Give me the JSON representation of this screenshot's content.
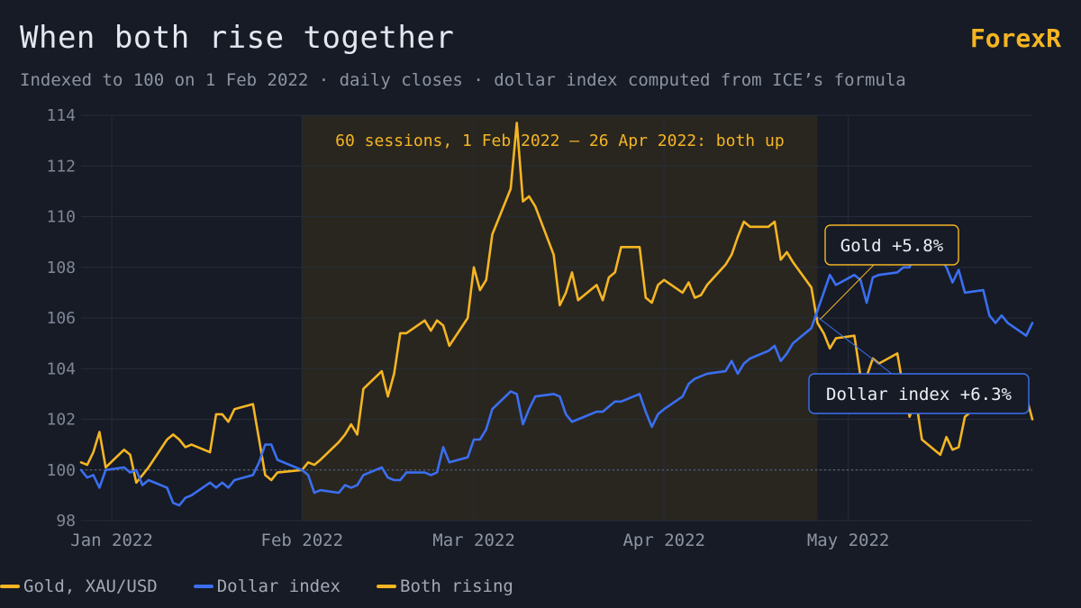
{
  "header": {
    "title": "When both rise together",
    "brand": "ForexR",
    "subtitle": "Indexed to 100 on 1 Feb 2022 · daily closes · dollar index computed from ICE’s formula"
  },
  "legend": [
    {
      "label": "Gold, XAU/USD",
      "color": "#f5b523"
    },
    {
      "label": "Dollar index",
      "color": "#3b6ff0"
    },
    {
      "label": "Both rising",
      "color": "#f5b523"
    }
  ],
  "chart_data": {
    "type": "line",
    "title": "When both rise together",
    "xlabel": "",
    "ylabel": "",
    "ylim": [
      98,
      114
    ],
    "yticks": [
      98,
      100,
      102,
      104,
      106,
      108,
      110,
      112,
      114
    ],
    "xticks": [
      {
        "label": "Jan 2022",
        "date": "2022-01-01"
      },
      {
        "label": "Feb 2022",
        "date": "2022-02-01"
      },
      {
        "label": "Mar 2022",
        "date": "2022-03-01"
      },
      {
        "label": "Apr 2022",
        "date": "2022-04-01"
      },
      {
        "label": "May 2022",
        "date": "2022-05-01"
      }
    ],
    "xrange": [
      "2021-12-27",
      "2022-05-31"
    ],
    "reference_line": 100,
    "grid": true,
    "shaded_region": {
      "start": "2022-02-01",
      "end": "2022-04-26",
      "label": "60 sessions, 1 Feb 2022 – 26 Apr 2022: both up"
    },
    "annotations": [
      {
        "text": "Gold +5.8%",
        "series": "Gold, XAU/USD",
        "date": "2022-04-26",
        "value": 105.8
      },
      {
        "text": "Dollar index +6.3%",
        "series": "Dollar index",
        "date": "2022-04-26",
        "value": 106.3
      }
    ],
    "series": [
      {
        "name": "Gold, XAU/USD",
        "color": "#f5b523",
        "points": [
          [
            "2021-12-27",
            100.3
          ],
          [
            "2021-12-28",
            100.2
          ],
          [
            "2021-12-29",
            100.7
          ],
          [
            "2021-12-30",
            101.5
          ],
          [
            "2021-12-31",
            100.1
          ],
          [
            "2022-01-03",
            100.8
          ],
          [
            "2022-01-04",
            100.6
          ],
          [
            "2022-01-05",
            99.5
          ],
          [
            "2022-01-06",
            99.8
          ],
          [
            "2022-01-07",
            100.1
          ],
          [
            "2022-01-10",
            101.2
          ],
          [
            "2022-01-11",
            101.4
          ],
          [
            "2022-01-12",
            101.2
          ],
          [
            "2022-01-13",
            100.9
          ],
          [
            "2022-01-14",
            101.0
          ],
          [
            "2022-01-17",
            100.7
          ],
          [
            "2022-01-18",
            102.2
          ],
          [
            "2022-01-19",
            102.2
          ],
          [
            "2022-01-20",
            101.9
          ],
          [
            "2022-01-21",
            102.4
          ],
          [
            "2022-01-24",
            102.6
          ],
          [
            "2022-01-25",
            101.2
          ],
          [
            "2022-01-26",
            99.8
          ],
          [
            "2022-01-27",
            99.6
          ],
          [
            "2022-01-28",
            99.9
          ],
          [
            "2022-02-01",
            100.0
          ],
          [
            "2022-02-02",
            100.3
          ],
          [
            "2022-02-03",
            100.2
          ],
          [
            "2022-02-04",
            100.4
          ],
          [
            "2022-02-07",
            101.1
          ],
          [
            "2022-02-08",
            101.4
          ],
          [
            "2022-02-09",
            101.8
          ],
          [
            "2022-02-10",
            101.4
          ],
          [
            "2022-02-11",
            103.2
          ],
          [
            "2022-02-14",
            103.9
          ],
          [
            "2022-02-15",
            102.9
          ],
          [
            "2022-02-16",
            103.8
          ],
          [
            "2022-02-17",
            105.4
          ],
          [
            "2022-02-18",
            105.4
          ],
          [
            "2022-02-21",
            105.9
          ],
          [
            "2022-02-22",
            105.5
          ],
          [
            "2022-02-23",
            105.9
          ],
          [
            "2022-02-24",
            105.7
          ],
          [
            "2022-02-25",
            104.9
          ],
          [
            "2022-02-28",
            106.0
          ],
          [
            "2022-03-01",
            108.0
          ],
          [
            "2022-03-02",
            107.1
          ],
          [
            "2022-03-03",
            107.5
          ],
          [
            "2022-03-04",
            109.3
          ],
          [
            "2022-03-07",
            111.1
          ],
          [
            "2022-03-08",
            113.7
          ],
          [
            "2022-03-09",
            110.6
          ],
          [
            "2022-03-10",
            110.8
          ],
          [
            "2022-03-11",
            110.4
          ],
          [
            "2022-03-14",
            108.5
          ],
          [
            "2022-03-15",
            106.5
          ],
          [
            "2022-03-16",
            107.0
          ],
          [
            "2022-03-17",
            107.8
          ],
          [
            "2022-03-18",
            106.7
          ],
          [
            "2022-03-21",
            107.3
          ],
          [
            "2022-03-22",
            106.7
          ],
          [
            "2022-03-23",
            107.6
          ],
          [
            "2022-03-24",
            107.8
          ],
          [
            "2022-03-25",
            108.8
          ],
          [
            "2022-03-28",
            108.8
          ],
          [
            "2022-03-29",
            106.8
          ],
          [
            "2022-03-30",
            106.6
          ],
          [
            "2022-03-31",
            107.3
          ],
          [
            "2022-04-01",
            107.5
          ],
          [
            "2022-04-04",
            107.0
          ],
          [
            "2022-04-05",
            107.4
          ],
          [
            "2022-04-06",
            106.8
          ],
          [
            "2022-04-07",
            106.9
          ],
          [
            "2022-04-08",
            107.3
          ],
          [
            "2022-04-11",
            108.1
          ],
          [
            "2022-04-12",
            108.5
          ],
          [
            "2022-04-13",
            109.2
          ],
          [
            "2022-04-14",
            109.8
          ],
          [
            "2022-04-15",
            109.6
          ],
          [
            "2022-04-18",
            109.6
          ],
          [
            "2022-04-19",
            109.8
          ],
          [
            "2022-04-20",
            108.3
          ],
          [
            "2022-04-21",
            108.6
          ],
          [
            "2022-04-22",
            108.2
          ],
          [
            "2022-04-25",
            107.2
          ],
          [
            "2022-04-26",
            105.8
          ],
          [
            "2022-04-27",
            105.4
          ],
          [
            "2022-04-28",
            104.8
          ],
          [
            "2022-04-29",
            105.2
          ],
          [
            "2022-05-02",
            105.3
          ],
          [
            "2022-05-03",
            103.7
          ],
          [
            "2022-05-04",
            103.7
          ],
          [
            "2022-05-05",
            104.4
          ],
          [
            "2022-05-06",
            104.2
          ],
          [
            "2022-05-09",
            104.6
          ],
          [
            "2022-05-10",
            103.2
          ],
          [
            "2022-05-11",
            102.1
          ],
          [
            "2022-05-12",
            102.8
          ],
          [
            "2022-05-13",
            101.2
          ],
          [
            "2022-05-16",
            100.6
          ],
          [
            "2022-05-17",
            101.3
          ],
          [
            "2022-05-18",
            100.8
          ],
          [
            "2022-05-19",
            100.9
          ],
          [
            "2022-05-20",
            102.1
          ],
          [
            "2022-05-23",
            102.7
          ],
          [
            "2022-05-24",
            103.0
          ],
          [
            "2022-05-25",
            103.2
          ],
          [
            "2022-05-26",
            102.8
          ],
          [
            "2022-05-27",
            103.0
          ],
          [
            "2022-05-30",
            102.9
          ],
          [
            "2022-05-31",
            102.0
          ]
        ]
      },
      {
        "name": "Dollar index",
        "color": "#3b6ff0",
        "points": [
          [
            "2021-12-27",
            100.0
          ],
          [
            "2021-12-28",
            99.7
          ],
          [
            "2021-12-29",
            99.8
          ],
          [
            "2021-12-30",
            99.3
          ],
          [
            "2021-12-31",
            100.0
          ],
          [
            "2022-01-03",
            100.1
          ],
          [
            "2022-01-04",
            99.9
          ],
          [
            "2022-01-05",
            100.0
          ],
          [
            "2022-01-06",
            99.4
          ],
          [
            "2022-01-07",
            99.6
          ],
          [
            "2022-01-10",
            99.3
          ],
          [
            "2022-01-11",
            98.7
          ],
          [
            "2022-01-12",
            98.6
          ],
          [
            "2022-01-13",
            98.9
          ],
          [
            "2022-01-14",
            99.0
          ],
          [
            "2022-01-17",
            99.5
          ],
          [
            "2022-01-18",
            99.3
          ],
          [
            "2022-01-19",
            99.5
          ],
          [
            "2022-01-20",
            99.3
          ],
          [
            "2022-01-21",
            99.6
          ],
          [
            "2022-01-24",
            99.8
          ],
          [
            "2022-01-25",
            100.3
          ],
          [
            "2022-01-26",
            101.0
          ],
          [
            "2022-01-27",
            101.0
          ],
          [
            "2022-01-28",
            100.4
          ],
          [
            "2022-02-01",
            100.0
          ],
          [
            "2022-02-02",
            99.8
          ],
          [
            "2022-02-03",
            99.1
          ],
          [
            "2022-02-04",
            99.2
          ],
          [
            "2022-02-07",
            99.1
          ],
          [
            "2022-02-08",
            99.4
          ],
          [
            "2022-02-09",
            99.3
          ],
          [
            "2022-02-10",
            99.4
          ],
          [
            "2022-02-11",
            99.8
          ],
          [
            "2022-02-14",
            100.1
          ],
          [
            "2022-02-15",
            99.7
          ],
          [
            "2022-02-16",
            99.6
          ],
          [
            "2022-02-17",
            99.6
          ],
          [
            "2022-02-18",
            99.9
          ],
          [
            "2022-02-21",
            99.9
          ],
          [
            "2022-02-22",
            99.8
          ],
          [
            "2022-02-23",
            99.9
          ],
          [
            "2022-02-24",
            100.9
          ],
          [
            "2022-02-25",
            100.3
          ],
          [
            "2022-02-28",
            100.5
          ],
          [
            "2022-03-01",
            101.2
          ],
          [
            "2022-03-02",
            101.2
          ],
          [
            "2022-03-03",
            101.6
          ],
          [
            "2022-03-04",
            102.4
          ],
          [
            "2022-03-07",
            103.1
          ],
          [
            "2022-03-08",
            103.0
          ],
          [
            "2022-03-09",
            101.8
          ],
          [
            "2022-03-10",
            102.4
          ],
          [
            "2022-03-11",
            102.9
          ],
          [
            "2022-03-14",
            103.0
          ],
          [
            "2022-03-15",
            102.9
          ],
          [
            "2022-03-16",
            102.2
          ],
          [
            "2022-03-17",
            101.9
          ],
          [
            "2022-03-18",
            102.0
          ],
          [
            "2022-03-21",
            102.3
          ],
          [
            "2022-03-22",
            102.3
          ],
          [
            "2022-03-23",
            102.5
          ],
          [
            "2022-03-24",
            102.7
          ],
          [
            "2022-03-25",
            102.7
          ],
          [
            "2022-03-28",
            103.0
          ],
          [
            "2022-03-29",
            102.3
          ],
          [
            "2022-03-30",
            101.7
          ],
          [
            "2022-03-31",
            102.2
          ],
          [
            "2022-04-01",
            102.4
          ],
          [
            "2022-04-04",
            102.9
          ],
          [
            "2022-04-05",
            103.4
          ],
          [
            "2022-04-06",
            103.6
          ],
          [
            "2022-04-07",
            103.7
          ],
          [
            "2022-04-08",
            103.8
          ],
          [
            "2022-04-11",
            103.9
          ],
          [
            "2022-04-12",
            104.3
          ],
          [
            "2022-04-13",
            103.8
          ],
          [
            "2022-04-14",
            104.2
          ],
          [
            "2022-04-15",
            104.4
          ],
          [
            "2022-04-18",
            104.7
          ],
          [
            "2022-04-19",
            104.9
          ],
          [
            "2022-04-20",
            104.3
          ],
          [
            "2022-04-21",
            104.6
          ],
          [
            "2022-04-22",
            105.0
          ],
          [
            "2022-04-25",
            105.6
          ],
          [
            "2022-04-26",
            106.3
          ],
          [
            "2022-04-27",
            107.0
          ],
          [
            "2022-04-28",
            107.7
          ],
          [
            "2022-04-29",
            107.3
          ],
          [
            "2022-05-02",
            107.7
          ],
          [
            "2022-05-03",
            107.5
          ],
          [
            "2022-05-04",
            106.6
          ],
          [
            "2022-05-05",
            107.6
          ],
          [
            "2022-05-06",
            107.7
          ],
          [
            "2022-05-09",
            107.8
          ],
          [
            "2022-05-10",
            108.0
          ],
          [
            "2022-05-11",
            108.0
          ],
          [
            "2022-05-12",
            108.6
          ],
          [
            "2022-05-13",
            108.6
          ],
          [
            "2022-05-16",
            108.4
          ],
          [
            "2022-05-17",
            108.0
          ],
          [
            "2022-05-18",
            107.4
          ],
          [
            "2022-05-19",
            107.9
          ],
          [
            "2022-05-20",
            107.0
          ],
          [
            "2022-05-23",
            107.1
          ],
          [
            "2022-05-24",
            106.1
          ],
          [
            "2022-05-25",
            105.8
          ],
          [
            "2022-05-26",
            106.1
          ],
          [
            "2022-05-27",
            105.8
          ],
          [
            "2022-05-30",
            105.3
          ],
          [
            "2022-05-31",
            105.8
          ]
        ]
      }
    ]
  }
}
